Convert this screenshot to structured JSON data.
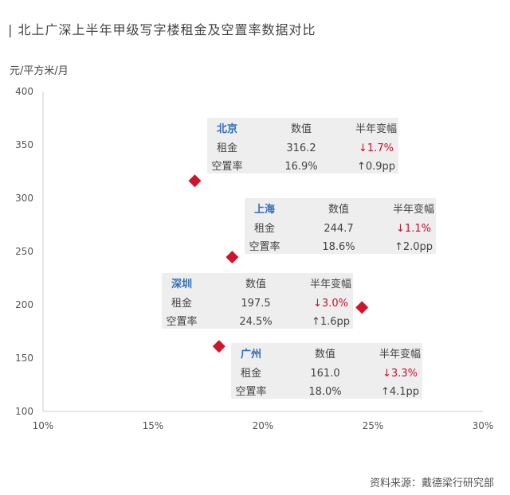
{
  "title": "| 北上广深上半年甲级写字楼租金及空置率数据对比",
  "ylabel": "元/平方米/月",
  "source": "资料来源：戴德梁行研究部",
  "colors": {
    "marker": "#d0142c",
    "city": "#2f6db5",
    "down": "#c8102e",
    "box": "#eeeeee"
  },
  "chart_data": {
    "type": "scatter",
    "title": "北上广深上半年甲级写字楼租金及空置率数据对比",
    "xlabel": "",
    "ylabel": "元/平方米/月",
    "xlim": [
      10,
      30
    ],
    "ylim": [
      100,
      400
    ],
    "x_ticks": [
      "10%",
      "15%",
      "20%",
      "25%",
      "30%"
    ],
    "y_ticks": [
      "100",
      "150",
      "200",
      "250",
      "300",
      "350",
      "400"
    ],
    "grid": false,
    "points": [
      {
        "city": "北京",
        "x": 16.9,
        "y": 316.2,
        "header_value": "数值",
        "header_change": "半年变幅",
        "row1_label": "租金",
        "row1_value": "316.2",
        "row1_change": "↓1.7%",
        "row2_label": "空置率",
        "row2_value": "16.9%",
        "row2_change": "↑0.9pp"
      },
      {
        "city": "上海",
        "x": 18.6,
        "y": 244.7,
        "header_value": "数值",
        "header_change": "半年变幅",
        "row1_label": "租金",
        "row1_value": "244.7",
        "row1_change": "↓1.1%",
        "row2_label": "空置率",
        "row2_value": "18.6%",
        "row2_change": "↑2.0pp"
      },
      {
        "city": "深圳",
        "x": 24.5,
        "y": 197.5,
        "header_value": "数值",
        "header_change": "半年变幅",
        "row1_label": "租金",
        "row1_value": "197.5",
        "row1_change": "↓3.0%",
        "row2_label": "空置率",
        "row2_value": "24.5%",
        "row2_change": "↑1.6pp"
      },
      {
        "city": "广州",
        "x": 18.0,
        "y": 161.0,
        "header_value": "数值",
        "header_change": "半年变幅",
        "row1_label": "租金",
        "row1_value": "161.0",
        "row1_change": "↓3.3%",
        "row2_label": "空置率",
        "row2_value": "18.0%",
        "row2_change": "↑4.1pp"
      }
    ]
  }
}
